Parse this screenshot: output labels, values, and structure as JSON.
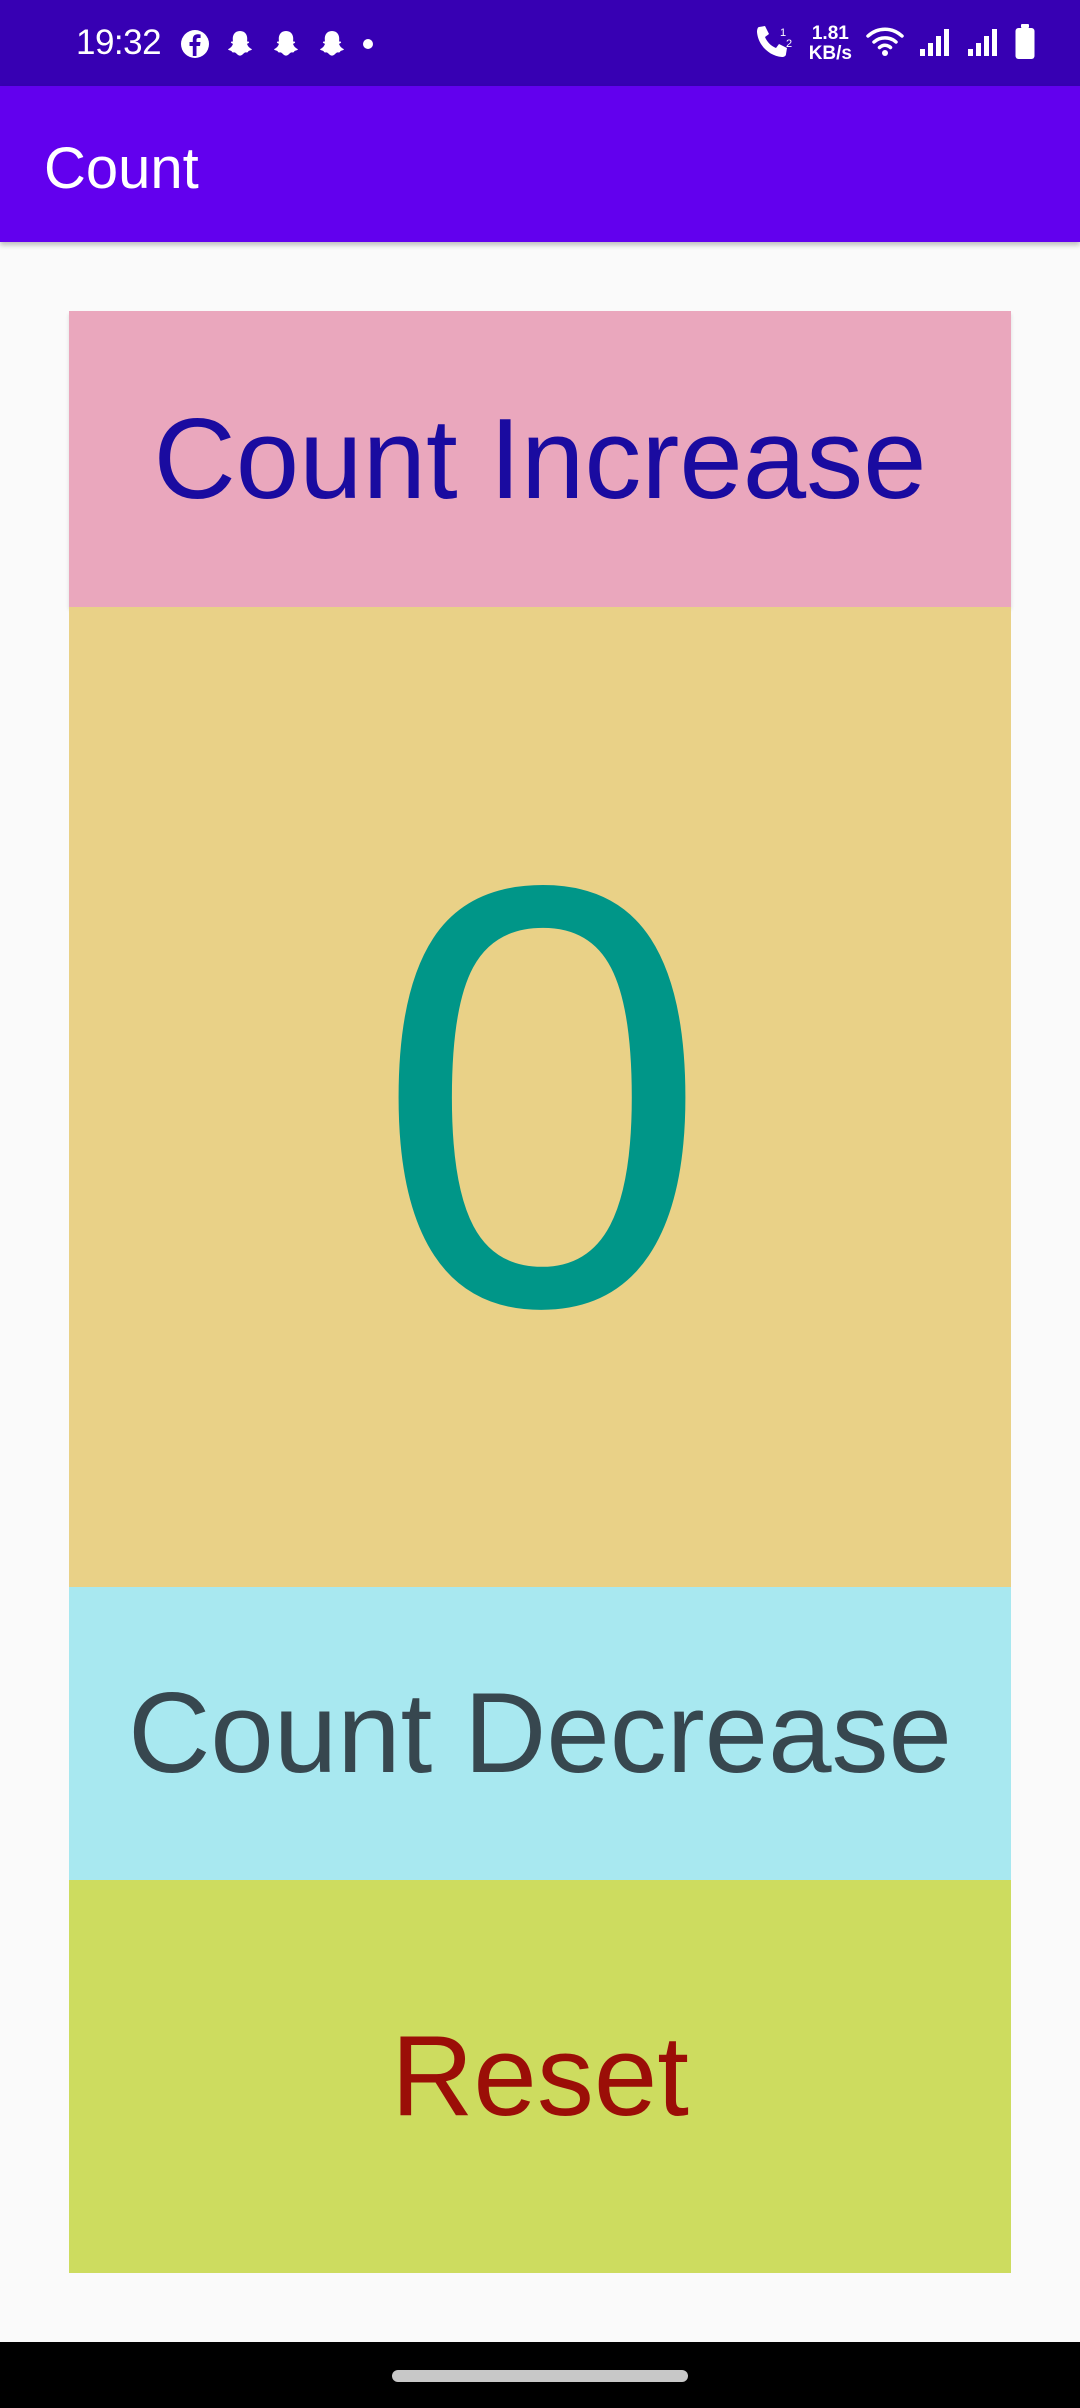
{
  "status_bar": {
    "time": "19:32",
    "net_speed_value": "1.81",
    "net_speed_unit": "KB/s",
    "left_icons": [
      "facebook-icon",
      "snapchat-icon",
      "snapchat-icon",
      "snapchat-icon",
      "notification-dot-icon"
    ],
    "right_icons": [
      "volte-call-icon",
      "wifi-icon",
      "signal-icon",
      "signal-icon",
      "battery-icon"
    ]
  },
  "app_bar": {
    "title": "Count"
  },
  "buttons": {
    "increase_label": "Count Increase",
    "decrease_label": "Count Decrease",
    "reset_label": "Reset"
  },
  "counter": {
    "value": "0"
  },
  "colors": {
    "status_bar": "#3700b3",
    "app_bar": "#6200ee",
    "increase_bg": "#eaa7bd",
    "counter_bg": "#e9d187",
    "decrease_bg": "#a8e8f0",
    "reset_bg": "#cddc5f",
    "counter_text": "#009688"
  }
}
